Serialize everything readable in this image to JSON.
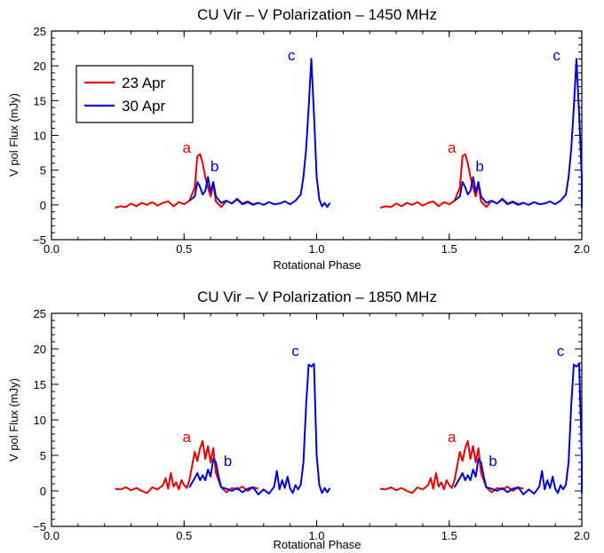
{
  "colors": {
    "apr23": "#ee0000",
    "apr30": "#0000dd",
    "axis": "#000000"
  },
  "chart_data": [
    {
      "type": "line",
      "title": "CU Vir – V Polarization – 1450 MHz",
      "xlabel": "Rotational Phase",
      "ylabel": "V pol Flux (mJy)",
      "xlim": [
        0,
        2
      ],
      "ylim": [
        -5,
        25
      ],
      "xticks": [
        0,
        0.5,
        1,
        1.5,
        2
      ],
      "xtick_labels": [
        "0.0",
        "0.5",
        "1.0",
        "1.5",
        "2.0"
      ],
      "yticks": [
        -5,
        0,
        5,
        10,
        15,
        20,
        25
      ],
      "ytick_labels": [
        "−5",
        "0",
        "5",
        "10",
        "15",
        "20",
        "25"
      ],
      "grid": false,
      "legend": {
        "placement": "top-left",
        "entries": [
          "23 Apr",
          "30 Apr"
        ]
      },
      "series": [
        {
          "name": "23 Apr",
          "color": "#ee0000",
          "x": [
            0.24,
            0.26,
            0.28,
            0.3,
            0.32,
            0.34,
            0.36,
            0.38,
            0.4,
            0.42,
            0.44,
            0.46,
            0.48,
            0.5,
            0.52,
            0.54,
            0.55,
            0.56,
            0.57,
            0.58,
            0.59,
            0.6,
            0.61,
            0.62,
            0.64,
            0.66,
            0.68,
            0.7,
            0.72,
            0.74,
            0.76,
            0.78
          ],
          "y": [
            -0.4,
            -0.2,
            -0.3,
            0.2,
            -0.2,
            0.3,
            0.0,
            0.4,
            -0.1,
            0.3,
            0.5,
            -0.2,
            0.4,
            0.1,
            0.6,
            2.5,
            7.0,
            7.3,
            6.0,
            4.0,
            2.5,
            1.2,
            3.0,
            0.5,
            -0.3,
            0.6,
            0.2,
            0.9,
            0.2,
            0.5,
            0.1,
            0.3
          ]
        },
        {
          "name": "30 Apr",
          "color": "#0000dd",
          "x": [
            0.52,
            0.54,
            0.55,
            0.56,
            0.57,
            0.58,
            0.59,
            0.6,
            0.61,
            0.62,
            0.64,
            0.66,
            0.68,
            0.7,
            0.72,
            0.74,
            0.76,
            0.78,
            0.8,
            0.82,
            0.84,
            0.86,
            0.88,
            0.9,
            0.92,
            0.94,
            0.95,
            0.96,
            0.97,
            0.98,
            0.99,
            1.0,
            1.01,
            1.02,
            1.03,
            1.04,
            1.05
          ],
          "y": [
            0.6,
            1.2,
            3.3,
            2.6,
            1.5,
            2.0,
            4.0,
            1.8,
            3.3,
            1.2,
            0.3,
            0.6,
            0.2,
            0.8,
            0.1,
            0.4,
            0.0,
            0.3,
            0.0,
            0.4,
            0.1,
            0.2,
            0.5,
            0.1,
            0.6,
            1.5,
            4.0,
            8.0,
            14.0,
            21.0,
            13.0,
            4.0,
            0.8,
            -0.2,
            0.3,
            -0.3,
            0.3
          ]
        }
      ],
      "annotations": [
        {
          "text": "a",
          "color": "#ee0000",
          "x": 0.51,
          "y": 7.5
        },
        {
          "text": "b",
          "color": "#0000dd",
          "x": 0.615,
          "y": 4.8
        },
        {
          "text": "c",
          "color": "#0000dd",
          "x": 0.905,
          "y": 20.8
        },
        {
          "text": "a",
          "color": "#ee0000",
          "x": 1.51,
          "y": 7.5
        },
        {
          "text": "b",
          "color": "#0000dd",
          "x": 1.615,
          "y": 4.8
        },
        {
          "text": "c",
          "color": "#0000dd",
          "x": 1.905,
          "y": 20.8
        }
      ],
      "repeat_period": 1
    },
    {
      "type": "line",
      "title": "CU Vir – V Polarization – 1850 MHz",
      "xlabel": "Rotational Phase",
      "ylabel": "V pol Flux (mJy)",
      "xlim": [
        0,
        2
      ],
      "ylim": [
        -5,
        25
      ],
      "xticks": [
        0,
        0.5,
        1,
        1.5,
        2
      ],
      "xtick_labels": [
        "0.0",
        "0.5",
        "1.0",
        "1.5",
        "2.0"
      ],
      "yticks": [
        -5,
        0,
        5,
        10,
        15,
        20,
        25
      ],
      "ytick_labels": [
        "−5",
        "0",
        "5",
        "10",
        "15",
        "20",
        "25"
      ],
      "grid": false,
      "series": [
        {
          "name": "23 Apr",
          "color": "#ee0000",
          "x": [
            0.24,
            0.26,
            0.28,
            0.3,
            0.32,
            0.34,
            0.36,
            0.38,
            0.4,
            0.42,
            0.43,
            0.44,
            0.45,
            0.46,
            0.47,
            0.48,
            0.49,
            0.5,
            0.51,
            0.52,
            0.54,
            0.55,
            0.56,
            0.57,
            0.58,
            0.59,
            0.6,
            0.61,
            0.62,
            0.64,
            0.66,
            0.68,
            0.7,
            0.72,
            0.74,
            0.76,
            0.78
          ],
          "y": [
            0.3,
            0.2,
            0.5,
            0.1,
            0.4,
            0.0,
            -0.3,
            0.5,
            0.2,
            0.8,
            1.8,
            0.3,
            2.5,
            0.6,
            1.2,
            0.2,
            1.5,
            0.8,
            0.4,
            1.5,
            5.5,
            4.2,
            6.0,
            7.0,
            4.5,
            6.3,
            4.0,
            6.0,
            2.5,
            0.5,
            -0.2,
            0.4,
            0.2,
            0.6,
            0.0,
            0.5,
            0.3
          ]
        },
        {
          "name": "30 Apr",
          "color": "#0000dd",
          "x": [
            0.52,
            0.54,
            0.55,
            0.56,
            0.57,
            0.58,
            0.59,
            0.6,
            0.61,
            0.62,
            0.63,
            0.64,
            0.66,
            0.68,
            0.7,
            0.72,
            0.74,
            0.76,
            0.78,
            0.8,
            0.82,
            0.84,
            0.85,
            0.86,
            0.87,
            0.88,
            0.89,
            0.9,
            0.91,
            0.92,
            0.93,
            0.94,
            0.95,
            0.96,
            0.97,
            0.98,
            0.99,
            1.0,
            1.01,
            1.02,
            1.03,
            1.04,
            1.05
          ],
          "y": [
            0.5,
            1.8,
            2.5,
            1.5,
            2.2,
            1.5,
            3.0,
            2.0,
            4.5,
            4.0,
            2.0,
            0.5,
            0.3,
            0.0,
            0.4,
            -0.2,
            0.3,
            0.5,
            -0.5,
            0.2,
            -0.4,
            0.6,
            2.8,
            0.2,
            1.5,
            0.4,
            2.0,
            0.3,
            -0.3,
            0.8,
            0.2,
            0.9,
            4.0,
            12.0,
            17.8,
            17.5,
            17.9,
            5.0,
            0.8,
            -0.3,
            0.4,
            -0.2,
            0.4
          ]
        }
      ],
      "annotations": [
        {
          "text": "a",
          "color": "#ee0000",
          "x": 0.51,
          "y": 6.9
        },
        {
          "text": "b",
          "color": "#0000dd",
          "x": 0.665,
          "y": 3.5
        },
        {
          "text": "c",
          "color": "#0000dd",
          "x": 0.92,
          "y": 19.0
        },
        {
          "text": "a",
          "color": "#ee0000",
          "x": 1.51,
          "y": 6.9
        },
        {
          "text": "b",
          "color": "#0000dd",
          "x": 1.665,
          "y": 3.5
        },
        {
          "text": "c",
          "color": "#0000dd",
          "x": 1.92,
          "y": 19.0
        }
      ],
      "repeat_period": 1
    }
  ]
}
